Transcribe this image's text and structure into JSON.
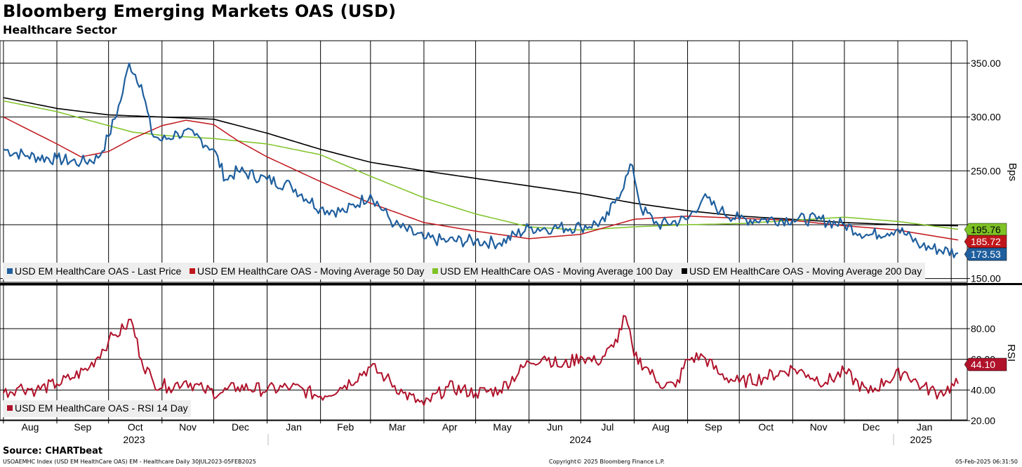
{
  "title": "Bloomberg Emerging Markets OAS (USD)",
  "subtitle": "Healthcare Sector",
  "footer": {
    "source": "Source: CHARTbeat",
    "left": "USOAEMHC Index (USD EM HealthCare OAS) EM - Healthcare  Daily 30JUL2023-05FEB2025",
    "center": "Copyright© 2025 Bloomberg Finance L.P.",
    "right": "05-Feb-2025 06:31:50"
  },
  "colors": {
    "last_price": "#1f5f9e",
    "ma50": "#c0161b",
    "ma100": "#7ec225",
    "ma200": "#000000",
    "rsi": "#b0122b"
  },
  "chart_data": [
    {
      "type": "line",
      "ylabel": "Bps",
      "ylim": [
        150,
        350
      ],
      "yticks": [
        "350.00",
        "300.00",
        "250.00",
        "150.00"
      ],
      "grid": true,
      "legend_position": "bottom-left",
      "x_months": [
        "Aug",
        "Sep",
        "Oct",
        "Nov",
        "Dec",
        "Jan",
        "Feb",
        "Mar",
        "Apr",
        "May",
        "Jun",
        "Jul",
        "Aug",
        "Sep",
        "Oct",
        "Nov",
        "Dec",
        "Jan"
      ],
      "x_years": [
        "2023",
        "2024",
        "2025"
      ],
      "series": [
        {
          "name": "USD EM HealthCare OAS - Last Price",
          "color_key": "last_price",
          "end_label": "173.53",
          "x": [
            "2023-08-01",
            "2023-08-15",
            "2023-09-01",
            "2023-09-15",
            "2023-09-25",
            "2023-10-01",
            "2023-10-08",
            "2023-10-13",
            "2023-10-20",
            "2023-10-26",
            "2023-11-01",
            "2023-11-10",
            "2023-11-20",
            "2023-12-01",
            "2023-12-08",
            "2023-12-15",
            "2024-01-01",
            "2024-01-15",
            "2024-02-01",
            "2024-02-15",
            "2024-03-01",
            "2024-03-15",
            "2024-04-01",
            "2024-04-15",
            "2024-05-01",
            "2024-05-15",
            "2024-06-01",
            "2024-06-15",
            "2024-07-01",
            "2024-07-15",
            "2024-07-22",
            "2024-07-31",
            "2024-08-05",
            "2024-08-15",
            "2024-09-01",
            "2024-09-10",
            "2024-09-20",
            "2024-10-01",
            "2024-10-15",
            "2024-11-01",
            "2024-11-15",
            "2024-12-01",
            "2024-12-15",
            "2025-01-01",
            "2025-01-15",
            "2025-02-05"
          ],
          "values": [
            270,
            264,
            261,
            258,
            262,
            282,
            315,
            350,
            330,
            285,
            278,
            285,
            283,
            270,
            242,
            250,
            242,
            236,
            215,
            212,
            228,
            200,
            187,
            185,
            185,
            183,
            197,
            197,
            198,
            203,
            225,
            255,
            215,
            200,
            205,
            225,
            213,
            205,
            205,
            205,
            205,
            200,
            190,
            196,
            180,
            173.53
          ]
        },
        {
          "name": "USD EM HealthCare OAS - Moving Average 50 Day",
          "color_key": "ma50",
          "end_label": "185.72",
          "x": [
            "2023-08-01",
            "2023-09-01",
            "2023-09-15",
            "2023-10-01",
            "2023-10-15",
            "2023-11-01",
            "2023-11-15",
            "2023-12-01",
            "2023-12-15",
            "2024-01-01",
            "2024-02-01",
            "2024-03-01",
            "2024-04-01",
            "2024-05-01",
            "2024-06-01",
            "2024-07-01",
            "2024-08-01",
            "2024-09-01",
            "2024-10-01",
            "2024-11-01",
            "2024-12-01",
            "2025-01-01",
            "2025-02-05"
          ],
          "values": [
            300,
            275,
            263,
            268,
            280,
            292,
            297,
            293,
            278,
            263,
            240,
            220,
            202,
            194,
            187,
            191,
            205,
            208,
            206,
            204,
            199,
            195,
            185.72
          ]
        },
        {
          "name": "USD EM HealthCare OAS - Moving Average 100 Day",
          "color_key": "ma100",
          "end_label": "195.76",
          "x": [
            "2023-08-01",
            "2023-09-01",
            "2023-10-01",
            "2023-10-15",
            "2023-11-01",
            "2023-12-01",
            "2024-01-01",
            "2024-02-01",
            "2024-03-01",
            "2024-04-01",
            "2024-05-01",
            "2024-06-01",
            "2024-07-01",
            "2024-08-01",
            "2024-09-01",
            "2024-10-01",
            "2024-11-01",
            "2024-12-01",
            "2025-01-01",
            "2025-02-05"
          ],
          "values": [
            315,
            305,
            292,
            286,
            283,
            280,
            275,
            265,
            245,
            225,
            210,
            198,
            195,
            198,
            200,
            201,
            204,
            207,
            203,
            195.76
          ]
        },
        {
          "name": "USD EM HealthCare OAS - Moving Average 200 Day",
          "color_key": "ma200",
          "x": [
            "2023-08-01",
            "2023-09-01",
            "2023-10-01",
            "2023-11-01",
            "2023-12-01",
            "2024-01-01",
            "2024-02-01",
            "2024-03-01",
            "2024-04-01",
            "2024-05-01",
            "2024-06-01",
            "2024-07-01",
            "2024-08-01",
            "2024-09-01",
            "2024-10-01",
            "2024-11-01",
            "2024-12-01",
            "2025-01-01",
            "2025-02-05"
          ],
          "values": [
            318,
            308,
            302,
            300,
            298,
            285,
            270,
            258,
            250,
            243,
            236,
            229,
            220,
            213,
            208,
            205,
            202,
            200,
            199
          ]
        }
      ]
    },
    {
      "type": "line",
      "ylabel": "RSI",
      "ylim": [
        10,
        90
      ],
      "yticks": [
        "80.00",
        "60.00",
        "40.00",
        "20.00"
      ],
      "grid": true,
      "legend_position": "bottom-left",
      "series": [
        {
          "name": "USD EM HealthCare OAS - RSI 14 Day",
          "color_key": "rsi",
          "end_label": "44.10",
          "x": [
            "2023-08-01",
            "2023-08-10",
            "2023-08-20",
            "2023-09-01",
            "2023-09-10",
            "2023-09-20",
            "2023-10-01",
            "2023-10-05",
            "2023-10-10",
            "2023-10-14",
            "2023-10-20",
            "2023-10-27",
            "2023-11-05",
            "2023-11-15",
            "2023-11-25",
            "2023-12-05",
            "2023-12-15",
            "2024-01-01",
            "2024-01-15",
            "2024-02-01",
            "2024-02-15",
            "2024-03-01",
            "2024-03-10",
            "2024-03-20",
            "2024-04-01",
            "2024-04-15",
            "2024-05-01",
            "2024-05-15",
            "2024-06-01",
            "2024-06-10",
            "2024-06-20",
            "2024-07-01",
            "2024-07-10",
            "2024-07-20",
            "2024-07-27",
            "2024-08-01",
            "2024-08-08",
            "2024-08-15",
            "2024-08-25",
            "2024-09-01",
            "2024-09-10",
            "2024-09-20",
            "2024-10-01",
            "2024-10-15",
            "2024-11-01",
            "2024-11-10",
            "2024-11-20",
            "2024-12-01",
            "2024-12-15",
            "2024-12-25",
            "2025-01-05",
            "2025-01-15",
            "2025-01-25",
            "2025-02-05"
          ],
          "values": [
            38,
            42,
            40,
            44,
            48,
            55,
            72,
            76,
            80,
            86,
            60,
            45,
            42,
            46,
            40,
            38,
            42,
            40,
            42,
            36,
            43,
            55,
            48,
            38,
            30,
            42,
            38,
            40,
            58,
            62,
            55,
            62,
            58,
            68,
            88,
            62,
            55,
            45,
            42,
            60,
            62,
            50,
            45,
            48,
            54,
            50,
            45,
            52,
            38,
            46,
            52,
            42,
            38,
            44.1
          ]
        }
      ]
    }
  ]
}
